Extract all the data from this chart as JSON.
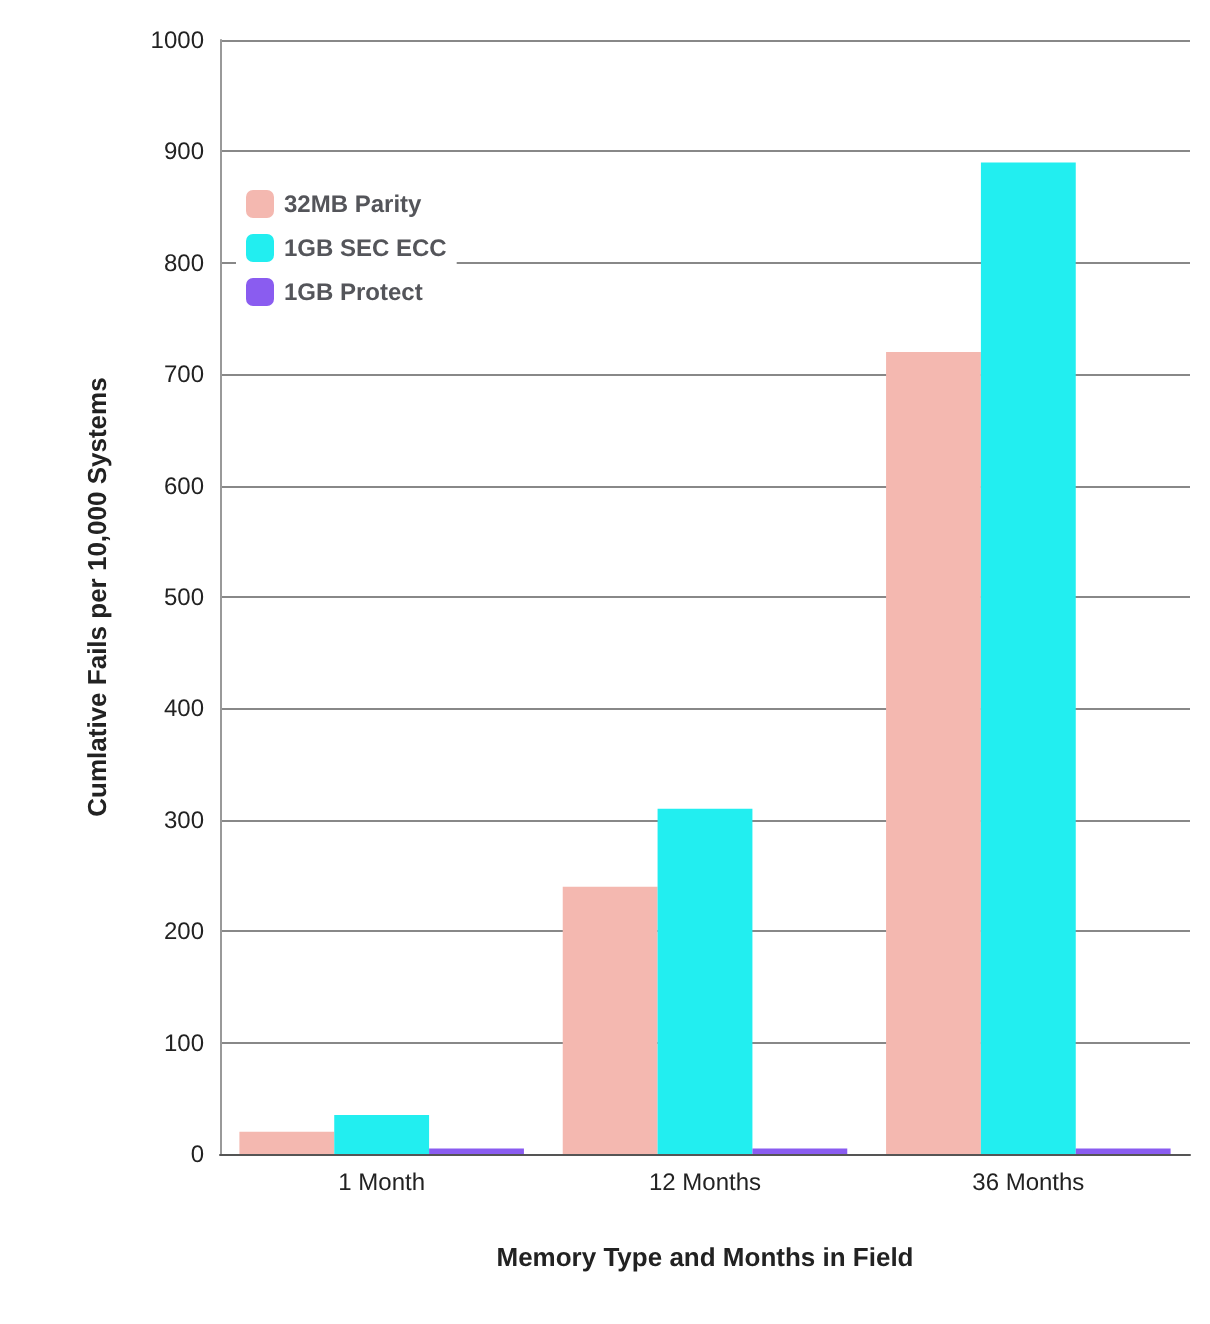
{
  "chart_data": {
    "type": "bar",
    "xlabel": "Memory Type and Months in Field",
    "ylabel": "Cumlative Fails per 10,000 Systems",
    "categories": [
      "1 Month",
      "12 Months",
      "36 Months"
    ],
    "series": [
      {
        "name": "32MB Parity",
        "color": "#f4b8b0",
        "values": [
          20,
          240,
          720
        ]
      },
      {
        "name": "1GB SEC ECC",
        "color": "#22eef0",
        "values": [
          35,
          310,
          890
        ]
      },
      {
        "name": "1GB Protect",
        "color": "#8a5cf0",
        "values": [
          5,
          5,
          5
        ]
      }
    ],
    "ylim": [
      0,
      1000
    ],
    "yticks": [
      0,
      100,
      200,
      300,
      400,
      500,
      600,
      700,
      800,
      900,
      1000
    ],
    "grid": "y",
    "legend": "top left"
  }
}
